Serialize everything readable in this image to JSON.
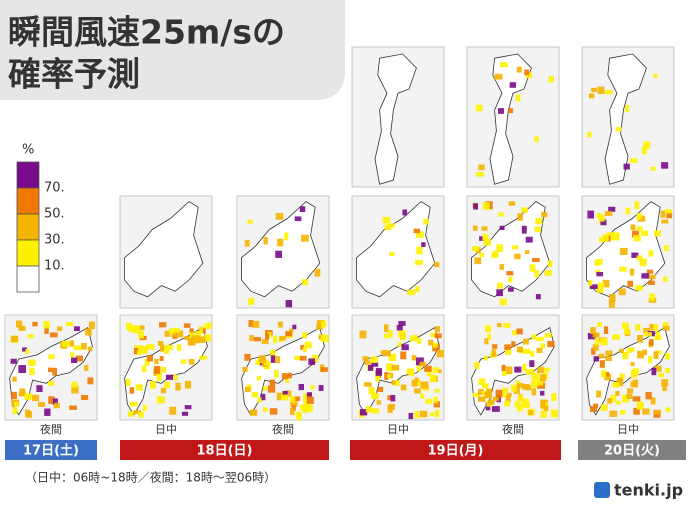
{
  "title": {
    "line1": "瞬間風速25m/sの",
    "line2": "確率予測"
  },
  "legend": {
    "unit": "%",
    "labels": [
      "70.",
      "50.",
      "30.",
      "10."
    ],
    "colors": [
      "#7a0a8c",
      "#f07800",
      "#f5b400",
      "#fff200",
      "#ffffff"
    ]
  },
  "periods": [
    "夜間",
    "日中",
    "夜間",
    "日中",
    "夜間",
    "日中"
  ],
  "days": [
    {
      "label": "17日(土)",
      "color": "#3a6fc4"
    },
    {
      "label": "18日(日)",
      "color": "#c01818"
    },
    {
      "label": "19日(月)",
      "color": "#c01818"
    },
    {
      "label": "20日(火)",
      "color": "#808080"
    }
  ],
  "note": "（日中：06時~18時／夜間：18時～翌06時）",
  "logo": "tenki.jp"
}
